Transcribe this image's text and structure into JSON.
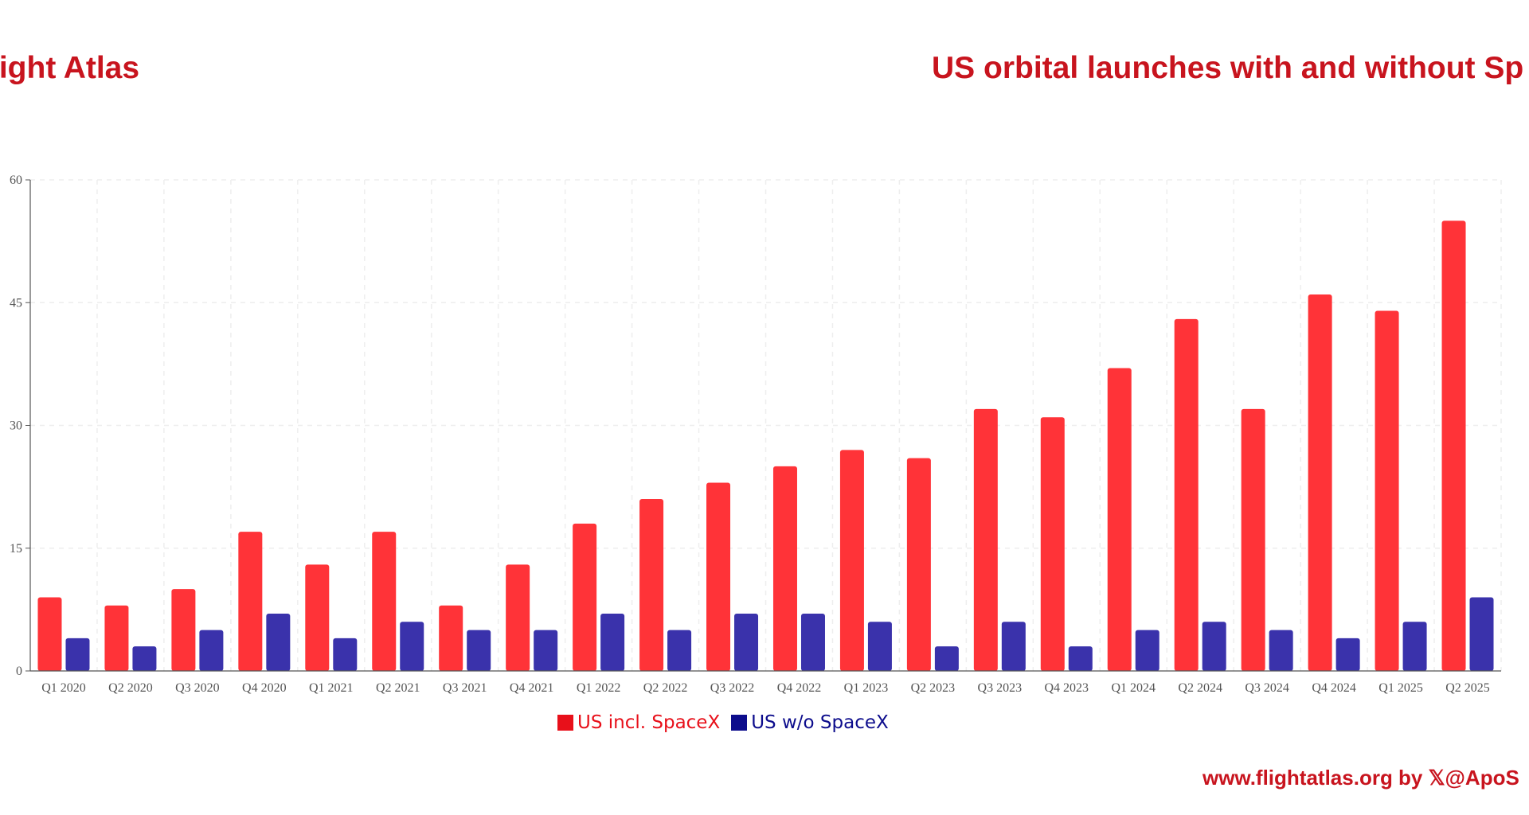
{
  "header": {
    "brand": "light Atlas",
    "title": "US orbital launches with and without Sp"
  },
  "footer": {
    "credit": "www.flightatlas.org by 𝕏@ApoS"
  },
  "colors": {
    "us_incl_spacex": "#ff3338",
    "us_wo_spacex": "#3a32ab",
    "legend_incl_text": "#e8101a",
    "legend_wo_text": "#0c0c8c",
    "grid": "#eeeeee",
    "axis": "#555555"
  },
  "chart_data": {
    "type": "bar",
    "title": "US orbital launches with and without Sp",
    "xlabel": "",
    "ylabel": "",
    "ylim": [
      0,
      60
    ],
    "yticks": [
      0,
      15,
      30,
      45,
      60
    ],
    "grid": true,
    "legend_placement": "bottom-center",
    "categories": [
      "Q1 2020",
      "Q2 2020",
      "Q3 2020",
      "Q4 2020",
      "Q1 2021",
      "Q2 2021",
      "Q3 2021",
      "Q4 2021",
      "Q1 2022",
      "Q2 2022",
      "Q3 2022",
      "Q4 2022",
      "Q1 2023",
      "Q2 2023",
      "Q3 2023",
      "Q4 2023",
      "Q1 2024",
      "Q2 2024",
      "Q3 2024",
      "Q4 2024",
      "Q1 2025",
      "Q2 2025"
    ],
    "series": [
      {
        "name": "US incl. SpaceX",
        "color": "#ff3338",
        "values": [
          9,
          8,
          10,
          17,
          13,
          17,
          8,
          13,
          18,
          21,
          23,
          25,
          27,
          26,
          32,
          31,
          37,
          43,
          32,
          46,
          44,
          55
        ]
      },
      {
        "name": "US w/o SpaceX",
        "color": "#3a32ab",
        "values": [
          4,
          3,
          5,
          7,
          4,
          6,
          5,
          5,
          7,
          5,
          7,
          7,
          6,
          3,
          6,
          3,
          5,
          6,
          5,
          4,
          6,
          9
        ]
      }
    ]
  }
}
